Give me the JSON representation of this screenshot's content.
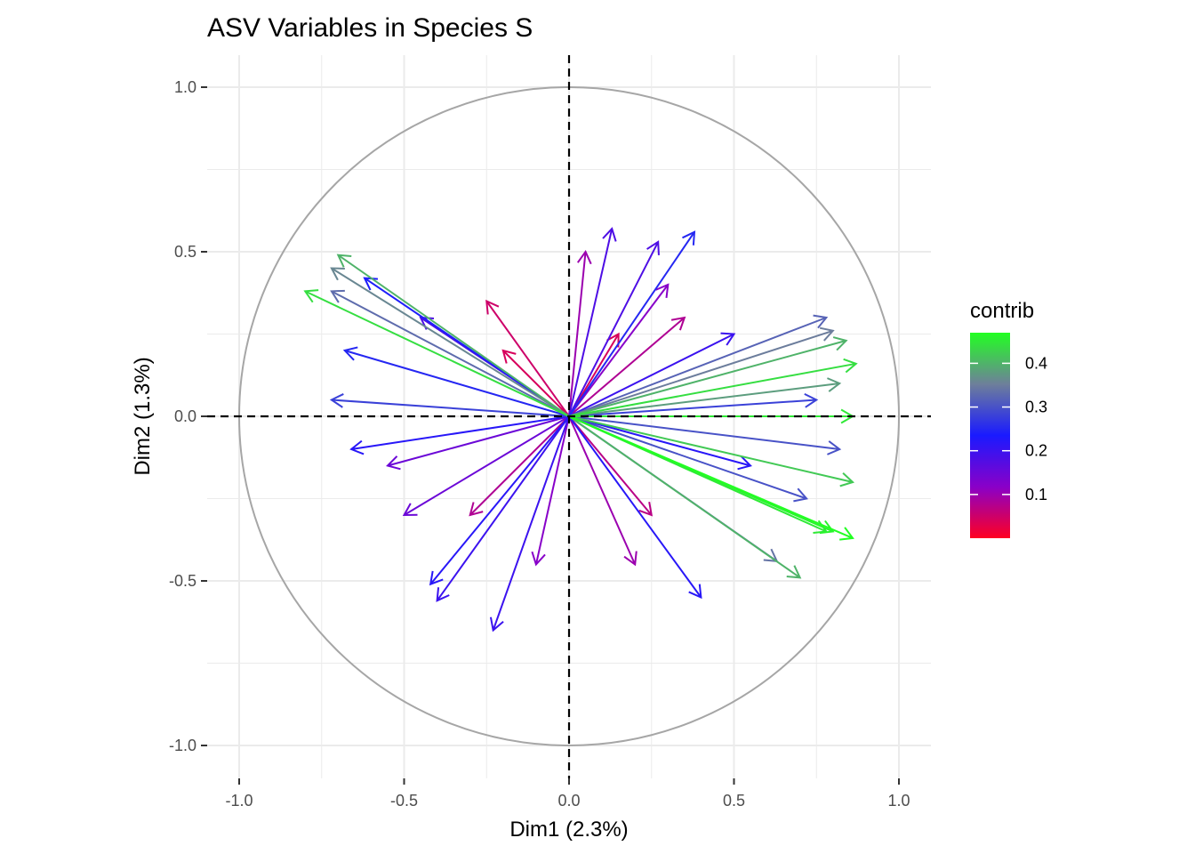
{
  "chart_data": {
    "type": "pca-variable-correlation-circle",
    "title": "ASV Variables in Species S",
    "xlabel": "Dim1 (2.3%)",
    "ylabel": "Dim2 (1.3%)",
    "xlim": [
      -1.1,
      1.1
    ],
    "ylim": [
      -1.1,
      1.1
    ],
    "x_ticks": [
      -1.0,
      -0.5,
      0.0,
      0.5,
      1.0
    ],
    "y_ticks": [
      -1.0,
      -0.5,
      0.0,
      0.5,
      1.0
    ],
    "x_tick_labels": [
      "-1.0",
      "-0.5",
      "0.0",
      "0.5",
      "1.0"
    ],
    "y_tick_labels": [
      "-1.0",
      "-0.5",
      "0.0",
      "0.5",
      "1.0"
    ],
    "grid": true,
    "unit_circle": true,
    "reference_lines": "dashed at x=0 and y=0",
    "legend": {
      "title": "contrib",
      "position": "right",
      "range": [
        0.0,
        0.47
      ],
      "ticks": [
        0.1,
        0.2,
        0.3,
        0.4
      ],
      "tick_labels": [
        "0.1",
        "0.2",
        "0.3",
        "0.4"
      ],
      "gradient_colors": [
        "#ff0022",
        "#8a00c8",
        "#1a1aff",
        "#6e7f9a",
        "#22ff22"
      ]
    },
    "arrows": [
      {
        "x": 0.86,
        "y": 0.0,
        "contrib": 0.45
      },
      {
        "x": 0.87,
        "y": 0.16,
        "contrib": 0.44
      },
      {
        "x": 0.84,
        "y": 0.23,
        "contrib": 0.4
      },
      {
        "x": 0.86,
        "y": -0.2,
        "contrib": 0.42
      },
      {
        "x": 0.86,
        "y": -0.37,
        "contrib": 0.47
      },
      {
        "x": 0.8,
        "y": -0.35,
        "contrib": 0.46
      },
      {
        "x": 0.78,
        "y": -0.35,
        "contrib": 0.45
      },
      {
        "x": 0.7,
        "y": -0.49,
        "contrib": 0.4
      },
      {
        "x": 0.63,
        "y": -0.44,
        "contrib": 0.34
      },
      {
        "x": 0.78,
        "y": 0.3,
        "contrib": 0.32
      },
      {
        "x": 0.8,
        "y": 0.26,
        "contrib": 0.35
      },
      {
        "x": 0.82,
        "y": 0.1,
        "contrib": 0.38
      },
      {
        "x": 0.82,
        "y": -0.1,
        "contrib": 0.3
      },
      {
        "x": 0.75,
        "y": 0.05,
        "contrib": 0.28
      },
      {
        "x": 0.72,
        "y": -0.25,
        "contrib": 0.3
      },
      {
        "x": 0.38,
        "y": 0.56,
        "contrib": 0.25
      },
      {
        "x": 0.4,
        "y": -0.55,
        "contrib": 0.22
      },
      {
        "x": -0.7,
        "y": 0.49,
        "contrib": 0.4
      },
      {
        "x": -0.8,
        "y": 0.38,
        "contrib": 0.44
      },
      {
        "x": -0.72,
        "y": 0.45,
        "contrib": 0.36
      },
      {
        "x": -0.72,
        "y": 0.38,
        "contrib": 0.33
      },
      {
        "x": -0.62,
        "y": 0.42,
        "contrib": 0.24
      },
      {
        "x": -0.68,
        "y": 0.2,
        "contrib": 0.25
      },
      {
        "x": -0.72,
        "y": 0.05,
        "contrib": 0.28
      },
      {
        "x": -0.66,
        "y": -0.1,
        "contrib": 0.22
      },
      {
        "x": -0.55,
        "y": -0.15,
        "contrib": 0.15
      },
      {
        "x": -0.42,
        "y": -0.51,
        "contrib": 0.22
      },
      {
        "x": -0.4,
        "y": -0.56,
        "contrib": 0.2
      },
      {
        "x": -0.23,
        "y": -0.65,
        "contrib": 0.2
      },
      {
        "x": 0.13,
        "y": 0.57,
        "contrib": 0.18
      },
      {
        "x": 0.27,
        "y": 0.53,
        "contrib": 0.18
      },
      {
        "x": -0.25,
        "y": 0.35,
        "contrib": 0.05
      },
      {
        "x": 0.05,
        "y": 0.5,
        "contrib": 0.1
      },
      {
        "x": 0.3,
        "y": 0.4,
        "contrib": 0.12
      },
      {
        "x": 0.2,
        "y": -0.45,
        "contrib": 0.1
      },
      {
        "x": -0.1,
        "y": -0.45,
        "contrib": 0.12
      },
      {
        "x": 0.5,
        "y": 0.25,
        "contrib": 0.2
      },
      {
        "x": 0.55,
        "y": -0.15,
        "contrib": 0.22
      },
      {
        "x": -0.45,
        "y": 0.3,
        "contrib": 0.18
      },
      {
        "x": -0.5,
        "y": -0.3,
        "contrib": 0.15
      },
      {
        "x": 0.35,
        "y": 0.3,
        "contrib": 0.08
      },
      {
        "x": -0.3,
        "y": -0.3,
        "contrib": 0.08
      },
      {
        "x": 0.25,
        "y": -0.3,
        "contrib": 0.07
      },
      {
        "x": -0.2,
        "y": 0.2,
        "contrib": 0.04
      },
      {
        "x": 0.15,
        "y": 0.25,
        "contrib": 0.04
      }
    ]
  }
}
